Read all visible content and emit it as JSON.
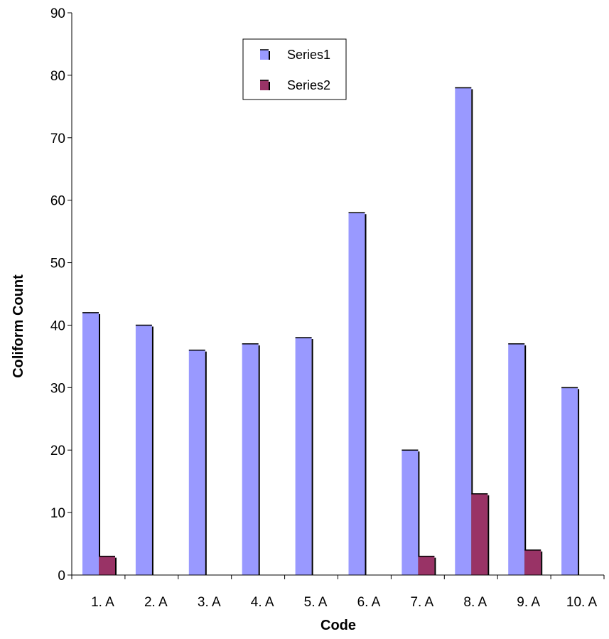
{
  "chart_data": {
    "type": "bar",
    "title": "",
    "xlabel": "Code",
    "ylabel": "Coliform Count",
    "categories": [
      "1. A",
      "2. A",
      "3. A",
      "4. A",
      "5. A",
      "6. A",
      "7. A",
      "8. A",
      "9. A",
      "10. A"
    ],
    "series": [
      {
        "name": "Series1",
        "color": "#9999FF",
        "values": [
          42,
          40,
          36,
          37,
          38,
          58,
          20,
          78,
          37,
          30
        ]
      },
      {
        "name": "Series2",
        "color": "#993366",
        "values": [
          3,
          0,
          0,
          0,
          0,
          0,
          3,
          13,
          4,
          0
        ]
      }
    ],
    "ylim": [
      0,
      90
    ],
    "yticks": [
      0,
      10,
      20,
      30,
      40,
      50,
      60,
      70,
      80,
      90
    ],
    "grid": false,
    "legend_position": "top-center"
  }
}
